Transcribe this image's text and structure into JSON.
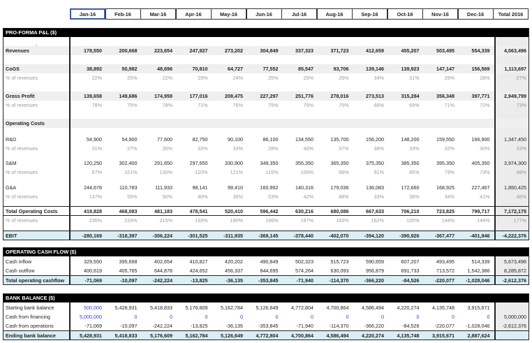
{
  "columns": [
    "Jan-16",
    "Feb-16",
    "Mar-16",
    "Apr-16",
    "May-16",
    "Jun-16",
    "Jul-16",
    "Aug-16",
    "Sep-16",
    "Oct-16",
    "Nov-16",
    "Dec-16",
    "Total 2016"
  ],
  "colors": {
    "header_bar": "#000000",
    "shade": "#efefef",
    "total_row": "#d9eef5",
    "input_blue": "#3344cc",
    "percent_gray": "#999999"
  },
  "pnl": {
    "title": "PRO-FORMA P&L ($)",
    "rows": [
      {
        "label": "Revenues",
        "style": "bold shade",
        "values": [
          "178,550",
          "200,668",
          "223,654",
          "247,827",
          "273,202",
          "304,849",
          "337,323",
          "371,723",
          "412,659",
          "455,207",
          "503,495",
          "554,339",
          "4,063,496"
        ]
      },
      {
        "label": "CoGS",
        "style": "bold shade",
        "values": [
          "38,892",
          "50,982",
          "48,696",
          "70,810",
          "64,727",
          "77,552",
          "85,547",
          "93,706",
          "139,146",
          "139,923",
          "147,147",
          "156,569",
          "1,113,697"
        ]
      },
      {
        "label": "% of revenues",
        "style": "pct",
        "values": [
          "22%",
          "25%",
          "22%",
          "29%",
          "24%",
          "25%",
          "25%",
          "25%",
          "34%",
          "31%",
          "29%",
          "28%",
          "27%"
        ]
      },
      {
        "label": "Gross Profit",
        "style": "bold shade",
        "values": [
          "139,658",
          "149,686",
          "174,959",
          "177,016",
          "208,475",
          "227,297",
          "251,776",
          "278,016",
          "273,513",
          "315,284",
          "356,348",
          "397,771",
          "2,949,799"
        ]
      },
      {
        "label": "% of revenues",
        "style": "pct",
        "values": [
          "78%",
          "75%",
          "78%",
          "71%",
          "76%",
          "75%",
          "75%",
          "75%",
          "66%",
          "69%",
          "71%",
          "72%",
          "73%"
        ]
      },
      {
        "label": "Operating Costs",
        "style": "bold shade",
        "values": [
          "",
          "",
          "",
          "",
          "",
          "",
          "",
          "",
          "",
          "",
          "",
          "",
          ""
        ]
      },
      {
        "label": "R&D",
        "style": "",
        "values": [
          "54,900",
          "54,900",
          "77,600",
          "82,750",
          "90,100",
          "86,100",
          "134,550",
          "135,700",
          "156,200",
          "148,200",
          "159,550",
          "166,900",
          "1,347,450"
        ]
      },
      {
        "label": "% of revenues",
        "style": "pct",
        "values": [
          "31%",
          "27%",
          "35%",
          "33%",
          "33%",
          "28%",
          "40%",
          "37%",
          "38%",
          "33%",
          "32%",
          "30%",
          "33%"
        ]
      },
      {
        "label": "S&M",
        "style": "",
        "values": [
          "120,250",
          "302,400",
          "291,650",
          "297,650",
          "330,900",
          "349,350",
          "355,350",
          "365,350",
          "375,350",
          "385,350",
          "395,350",
          "405,350",
          "3,974,300"
        ]
      },
      {
        "label": "% of revenues",
        "style": "pct",
        "values": [
          "67%",
          "151%",
          "130%",
          "120%",
          "121%",
          "115%",
          "105%",
          "98%",
          "91%",
          "85%",
          "79%",
          "73%",
          "98%"
        ]
      },
      {
        "label": "G&A",
        "style": "",
        "values": [
          "244,678",
          "110,783",
          "111,933",
          "98,141",
          "99,410",
          "160,992",
          "140,316",
          "179,036",
          "136,083",
          "172,660",
          "168,925",
          "227,467",
          "1,850,425"
        ]
      },
      {
        "label": "% of revenues",
        "style": "pct",
        "values": [
          "137%",
          "55%",
          "50%",
          "40%",
          "36%",
          "53%",
          "42%",
          "48%",
          "33%",
          "38%",
          "34%",
          "41%",
          "46%"
        ]
      },
      {
        "label": "Total Operating Costs",
        "style": "bold top",
        "values": [
          "419,828",
          "468,083",
          "481,183",
          "478,541",
          "520,410",
          "596,442",
          "630,216",
          "680,086",
          "667,633",
          "706,210",
          "723,825",
          "799,717",
          "7,172,175"
        ]
      },
      {
        "label": "% of revenues",
        "style": "pct top",
        "values": [
          "235%",
          "233%",
          "215%",
          "193%",
          "190%",
          "196%",
          "187%",
          "183%",
          "162%",
          "155%",
          "144%",
          "144%",
          "177%"
        ]
      },
      {
        "label": "EBIT",
        "style": "bold blue top",
        "values": [
          "-280,169",
          "-318,397",
          "-306,224",
          "-301,525",
          "-311,935",
          "-369,145",
          "-378,440",
          "-402,070",
          "-394,120",
          "-390,926",
          "-367,477",
          "-401,946",
          "-4,222,376"
        ]
      }
    ]
  },
  "cashflow": {
    "title": "OPERATING CASH FLOW ($)",
    "rows": [
      {
        "label": "Cash inflow",
        "style": "",
        "values": [
          "329,550",
          "395,668",
          "402,654",
          "410,827",
          "420,202",
          "490,849",
          "502,323",
          "515,723",
          "590,659",
          "607,207",
          "493,495",
          "514,339",
          "5,673,496"
        ]
      },
      {
        "label": "Cash outflow",
        "style": "",
        "values": [
          "400,619",
          "405,765",
          "644,878",
          "424,652",
          "456,337",
          "844,695",
          "574,264",
          "630,093",
          "956,879",
          "691,733",
          "713,572",
          "1,542,386",
          "8,285,872"
        ]
      },
      {
        "label": "Total operating cashflow",
        "style": "bold blue top",
        "values": [
          "-71,069",
          "-10,097",
          "-242,224",
          "-13,825",
          "-36,135",
          "-353,845",
          "-71,940",
          "-114,370",
          "-366,220",
          "-84,526",
          "-220,077",
          "-1,028,046",
          "-2,612,376"
        ]
      }
    ]
  },
  "bank": {
    "title": "BANK BALANCE ($)",
    "rows": [
      {
        "label": "Starting bank balance",
        "style": "",
        "values": [
          "500,000",
          "5,428,931",
          "5,418,833",
          "5,176,609",
          "5,162,784",
          "5,126,649",
          "4,772,804",
          "4,700,864",
          "4,586,494",
          "4,220,274",
          "4,135,748",
          "3,915,671",
          ""
        ]
      },
      {
        "label": "Cash from financing",
        "style": "",
        "values": [
          "5,000,000",
          "0",
          "0",
          "0",
          "0",
          "0",
          "0",
          "0",
          "0",
          "0",
          "0",
          "0",
          "5,000,000"
        ]
      },
      {
        "label": "Cash from operations",
        "style": "",
        "values": [
          "-71,069",
          "-10,097",
          "-242,224",
          "-13,825",
          "-36,135",
          "-353,845",
          "-71,940",
          "-114,370",
          "-366,220",
          "-84,526",
          "-220,077",
          "-1,028,046",
          "-2,612,376"
        ]
      },
      {
        "label": "Ending bank balance",
        "style": "bold blue top",
        "values": [
          "5,428,931",
          "5,418,833",
          "5,176,609",
          "5,162,784",
          "5,126,649",
          "4,772,804",
          "4,700,864",
          "4,586,494",
          "4,220,274",
          "4,135,748",
          "3,915,671",
          "2,887,624",
          ""
        ]
      }
    ]
  }
}
